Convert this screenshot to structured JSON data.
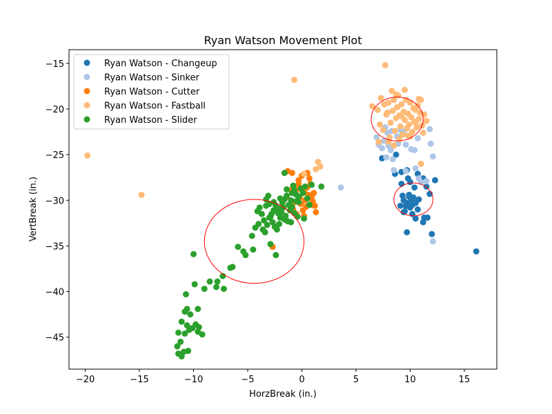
{
  "chart_data": {
    "type": "scatter",
    "title": "Ryan Watson Movement Plot",
    "xlabel": "HorzBreak (in.)",
    "ylabel": "VertBreak (in.)",
    "xlim": [
      -21.5,
      18.0
    ],
    "ylim": [
      -48.5,
      -13.5
    ],
    "xticks": [
      -20,
      -15,
      -10,
      -5,
      0,
      5,
      10,
      15
    ],
    "yticks": [
      -45,
      -40,
      -35,
      -30,
      -25,
      -20,
      -15
    ],
    "tick_labels_x": [
      "−20",
      "−15",
      "−10",
      "−5",
      "0",
      "5",
      "10",
      "15"
    ],
    "tick_labels_y": [
      "−45",
      "−40",
      "−35",
      "−30",
      "−25",
      "−20",
      "−15"
    ],
    "grid": false,
    "legend_position": "top-left",
    "series": [
      {
        "name": "Ryan Watson - Changeup",
        "color": "#1f77b4",
        "points": [
          [
            16.1,
            -35.6
          ],
          [
            12.3,
            -27.8
          ],
          [
            12.0,
            -33.7
          ],
          [
            11.8,
            -29.3
          ],
          [
            11.5,
            -28.5
          ],
          [
            11.6,
            -31.9
          ],
          [
            11.3,
            -31.9
          ],
          [
            11.2,
            -32.4
          ],
          [
            11.2,
            -27.6
          ],
          [
            10.8,
            -29.9
          ],
          [
            10.7,
            -27.1
          ],
          [
            10.7,
            -31.0
          ],
          [
            10.5,
            -30.3
          ],
          [
            10.5,
            -32.0
          ],
          [
            10.3,
            -29.7
          ],
          [
            10.2,
            -30.5
          ],
          [
            10.1,
            -29.9
          ],
          [
            10.0,
            -28.0
          ],
          [
            10.0,
            -30.8
          ],
          [
            9.9,
            -29.6
          ],
          [
            9.8,
            -27.6
          ],
          [
            9.7,
            -30.3
          ],
          [
            9.7,
            -26.7
          ],
          [
            9.6,
            -30.6
          ],
          [
            9.5,
            -31.2
          ],
          [
            9.4,
            -30.0
          ],
          [
            9.3,
            -29.5
          ],
          [
            9.2,
            -26.9
          ],
          [
            9.2,
            -28.2
          ],
          [
            9.1,
            -30.6
          ],
          [
            9.7,
            -33.5
          ],
          [
            8.6,
            -27.1
          ],
          [
            7.4,
            -25.4
          ],
          [
            9.4,
            -31.3
          ],
          [
            10.2,
            -31.5
          ],
          [
            8.7,
            -25.0
          ],
          [
            9.9,
            -29.4
          ],
          [
            10.4,
            -28.6
          ]
        ]
      },
      {
        "name": "Ryan Watson - Sinker",
        "color": "#aec7e8",
        "points": [
          [
            12.1,
            -34.5
          ],
          [
            3.6,
            -28.6
          ],
          [
            12.1,
            -25.2
          ],
          [
            11.9,
            -23.8
          ],
          [
            11.8,
            -22.2
          ],
          [
            11.5,
            -27.9
          ],
          [
            11.0,
            -28.0
          ],
          [
            10.8,
            -27.6
          ],
          [
            10.5,
            -26.5
          ],
          [
            10.4,
            -24.5
          ],
          [
            10.1,
            -24.4
          ],
          [
            9.9,
            -23.0
          ],
          [
            9.6,
            -23.9
          ],
          [
            9.4,
            -22.5
          ],
          [
            9.1,
            -22.3
          ],
          [
            8.8,
            -23.0
          ],
          [
            8.5,
            -26.7
          ],
          [
            8.4,
            -25.5
          ],
          [
            8.2,
            -24.5
          ],
          [
            8.0,
            -24.0
          ],
          [
            7.9,
            -22.6
          ],
          [
            7.6,
            -23.5
          ],
          [
            7.4,
            -24.3
          ],
          [
            7.1,
            -23.9
          ],
          [
            6.9,
            -23.1
          ],
          [
            7.7,
            -22.0
          ],
          [
            8.9,
            -23.8
          ],
          [
            10.7,
            -23.2
          ],
          [
            7.8,
            -25.3
          ],
          [
            9.6,
            -26.8
          ],
          [
            8.3,
            -22.4
          ]
        ]
      },
      {
        "name": "Ryan Watson - Cutter",
        "color": "#ff7f0e",
        "points": [
          [
            1.3,
            -31.3
          ],
          [
            0.2,
            -29.0
          ],
          [
            -0.2,
            -29.7
          ],
          [
            0.4,
            -30.7
          ],
          [
            -0.7,
            -30.2
          ],
          [
            0.9,
            -29.6
          ],
          [
            -0.3,
            -28.2
          ],
          [
            0.5,
            -28.6
          ],
          [
            -1.0,
            -28.9
          ],
          [
            0.1,
            -31.1
          ],
          [
            1.0,
            -30.1
          ],
          [
            -0.5,
            -31.5
          ],
          [
            0.7,
            -27.6
          ],
          [
            -1.4,
            -29.6
          ],
          [
            0.0,
            -27.3
          ],
          [
            -0.9,
            -27.0
          ],
          [
            -1.3,
            -26.8
          ],
          [
            1.1,
            -29.2
          ],
          [
            0.3,
            -30.0
          ],
          [
            -0.1,
            -30.4
          ],
          [
            0.6,
            -29.4
          ],
          [
            -0.6,
            -29.2
          ],
          [
            0.8,
            -28.2
          ],
          [
            -0.8,
            -31.0
          ],
          [
            0.2,
            -31.7
          ],
          [
            1.2,
            -30.6
          ],
          [
            -2.7,
            -35.1
          ],
          [
            -0.3,
            -27.8
          ],
          [
            0.5,
            -27.0
          ],
          [
            -1.1,
            -30.6
          ],
          [
            0.9,
            -30.5
          ],
          [
            -0.4,
            -28.8
          ]
        ]
      },
      {
        "name": "Ryan Watson - Fastball",
        "color": "#ffbb78",
        "points": [
          [
            -19.8,
            -25.1
          ],
          [
            -14.8,
            -29.4
          ],
          [
            -0.7,
            -16.8
          ],
          [
            7.7,
            -15.2
          ],
          [
            1.5,
            -25.8
          ],
          [
            1.7,
            -26.3
          ],
          [
            1.3,
            -26.6
          ],
          [
            0.2,
            -27.1
          ],
          [
            11.0,
            -26.0
          ],
          [
            6.5,
            -19.7
          ],
          [
            7.0,
            -20.1
          ],
          [
            7.3,
            -18.8
          ],
          [
            7.6,
            -19.5
          ],
          [
            7.8,
            -20.6
          ],
          [
            8.0,
            -19.3
          ],
          [
            8.2,
            -21.5
          ],
          [
            8.4,
            -20.2
          ],
          [
            8.5,
            -19.0
          ],
          [
            8.6,
            -22.4
          ],
          [
            8.7,
            -21.0
          ],
          [
            8.8,
            -19.8
          ],
          [
            8.9,
            -18.5
          ],
          [
            9.0,
            -20.7
          ],
          [
            9.1,
            -21.9
          ],
          [
            9.2,
            -19.5
          ],
          [
            9.3,
            -22.8
          ],
          [
            9.4,
            -20.3
          ],
          [
            9.5,
            -21.2
          ],
          [
            9.6,
            -19.0
          ],
          [
            9.7,
            -22.1
          ],
          [
            9.8,
            -20.5
          ],
          [
            9.9,
            -21.7
          ],
          [
            10.0,
            -19.3
          ],
          [
            10.1,
            -20.9
          ],
          [
            10.2,
            -22.5
          ],
          [
            10.3,
            -19.9
          ],
          [
            10.4,
            -21.4
          ],
          [
            10.5,
            -20.1
          ],
          [
            10.6,
            -22.0
          ],
          [
            10.7,
            -19.6
          ],
          [
            10.8,
            -21.1
          ],
          [
            10.9,
            -20.4
          ],
          [
            11.0,
            -19.0
          ],
          [
            11.1,
            -21.8
          ],
          [
            11.3,
            -20.6
          ],
          [
            11.5,
            -21.3
          ],
          [
            7.2,
            -21.7
          ],
          [
            7.5,
            -22.3
          ],
          [
            8.1,
            -23.1
          ],
          [
            9.0,
            -23.3
          ],
          [
            10.0,
            -23.0
          ],
          [
            11.2,
            -22.6
          ],
          [
            8.3,
            -18.0
          ],
          [
            9.5,
            -17.9
          ],
          [
            10.8,
            -18.9
          ],
          [
            8.7,
            -18.4
          ],
          [
            7.9,
            -20.4
          ],
          [
            9.2,
            -20.8
          ],
          [
            10.5,
            -21.5
          ],
          [
            8.0,
            -23.6
          ],
          [
            9.8,
            -22.9
          ],
          [
            7.1,
            -23.6
          ],
          [
            8.5,
            -24.0
          ]
        ]
      },
      {
        "name": "Ryan Watson - Slider",
        "color": "#2ca02c",
        "points": [
          [
            -11.1,
            -47.1
          ],
          [
            -10.5,
            -46.5
          ],
          [
            -11.4,
            -46.8
          ],
          [
            -10.9,
            -46.6
          ],
          [
            -11.5,
            -46.0
          ],
          [
            -11.2,
            -45.5
          ],
          [
            -10.8,
            -44.6
          ],
          [
            -11.4,
            -44.5
          ],
          [
            -10.4,
            -44.2
          ],
          [
            -10.1,
            -44.0
          ],
          [
            -9.8,
            -43.6
          ],
          [
            -9.6,
            -44.4
          ],
          [
            -9.2,
            -44.7
          ],
          [
            -9.5,
            -43.9
          ],
          [
            -10.6,
            -43.7
          ],
          [
            -11.1,
            -43.3
          ],
          [
            -10.3,
            -42.5
          ],
          [
            -10.6,
            -41.9
          ],
          [
            -10.8,
            -42.2
          ],
          [
            -9.6,
            -41.9
          ],
          [
            -10.7,
            -40.3
          ],
          [
            -9.9,
            -39.2
          ],
          [
            -9.0,
            -39.7
          ],
          [
            -8.5,
            -38.9
          ],
          [
            -7.8,
            -38.9
          ],
          [
            -7.9,
            -39.5
          ],
          [
            -7.2,
            -39.7
          ],
          [
            -7.3,
            -38.3
          ],
          [
            -6.6,
            -37.4
          ],
          [
            -6.4,
            -37.3
          ],
          [
            -5.9,
            -35.1
          ],
          [
            -5.4,
            -35.6
          ],
          [
            -5.2,
            -36.0
          ],
          [
            -4.5,
            -35.4
          ],
          [
            -2.9,
            -34.8
          ],
          [
            -2.4,
            -36.0
          ],
          [
            -10.0,
            -35.9
          ],
          [
            -4.3,
            -33.0
          ],
          [
            -3.6,
            -33.2
          ],
          [
            -3.4,
            -33.5
          ],
          [
            -3.2,
            -32.7
          ],
          [
            -3.0,
            -31.9
          ],
          [
            -2.8,
            -31.5
          ],
          [
            -2.6,
            -31.1
          ],
          [
            -2.4,
            -30.6
          ],
          [
            -2.2,
            -30.9
          ],
          [
            -2.0,
            -31.9
          ],
          [
            -1.8,
            -30.3
          ],
          [
            -1.6,
            -29.9
          ],
          [
            -1.4,
            -29.5
          ],
          [
            -1.2,
            -30.5
          ],
          [
            -1.0,
            -30.0
          ],
          [
            -0.9,
            -29.2
          ],
          [
            -0.7,
            -28.9
          ],
          [
            -0.5,
            -29.4
          ],
          [
            -0.3,
            -30.2
          ],
          [
            -0.1,
            -28.7
          ],
          [
            0.1,
            -29.2
          ],
          [
            0.3,
            -28.5
          ],
          [
            0.5,
            -29.8
          ],
          [
            0.7,
            -30.5
          ],
          [
            0.9,
            -28.3
          ],
          [
            1.8,
            -28.5
          ],
          [
            -1.6,
            -27.0
          ],
          [
            -4.1,
            -31.2
          ],
          [
            -3.9,
            -30.8
          ],
          [
            -3.7,
            -31.5
          ],
          [
            -3.5,
            -32.2
          ],
          [
            -3.3,
            -30.6
          ],
          [
            -3.1,
            -29.5
          ],
          [
            -2.9,
            -31.8
          ],
          [
            -2.7,
            -32.4
          ],
          [
            -2.5,
            -32.9
          ],
          [
            -2.3,
            -33.2
          ],
          [
            -2.1,
            -32.6
          ],
          [
            -1.9,
            -31.3
          ],
          [
            -1.7,
            -30.8
          ],
          [
            -1.5,
            -31.7
          ],
          [
            -1.3,
            -32.3
          ],
          [
            -1.1,
            -31.1
          ],
          [
            -0.9,
            -30.7
          ],
          [
            -0.7,
            -31.4
          ],
          [
            -0.5,
            -30.1
          ],
          [
            -0.3,
            -29.6
          ],
          [
            0.2,
            -32.0
          ],
          [
            -4.6,
            -33.9
          ],
          [
            -3.3,
            -29.9
          ],
          [
            -2.6,
            -30.2
          ],
          [
            -2.0,
            -29.8
          ],
          [
            -1.4,
            -28.8
          ],
          [
            -0.8,
            -28.4
          ],
          [
            -4.0,
            -32.6
          ],
          [
            -3.0,
            -30.4
          ],
          [
            -2.2,
            -31.4
          ],
          [
            -1.6,
            -32.1
          ],
          [
            -1.0,
            -32.4
          ],
          [
            -0.4,
            -31.8
          ]
        ]
      }
    ],
    "ellipses": [
      {
        "cx": -4.4,
        "cy": -34.5,
        "rx": 4.6,
        "ry": 4.6,
        "color": "#ff0000"
      },
      {
        "cx": 8.8,
        "cy": -21.1,
        "rx": 2.4,
        "ry": 2.4,
        "color": "#ff0000"
      },
      {
        "cx": 10.3,
        "cy": -29.9,
        "rx": 1.8,
        "ry": 1.8,
        "color": "#ff0000"
      }
    ]
  }
}
